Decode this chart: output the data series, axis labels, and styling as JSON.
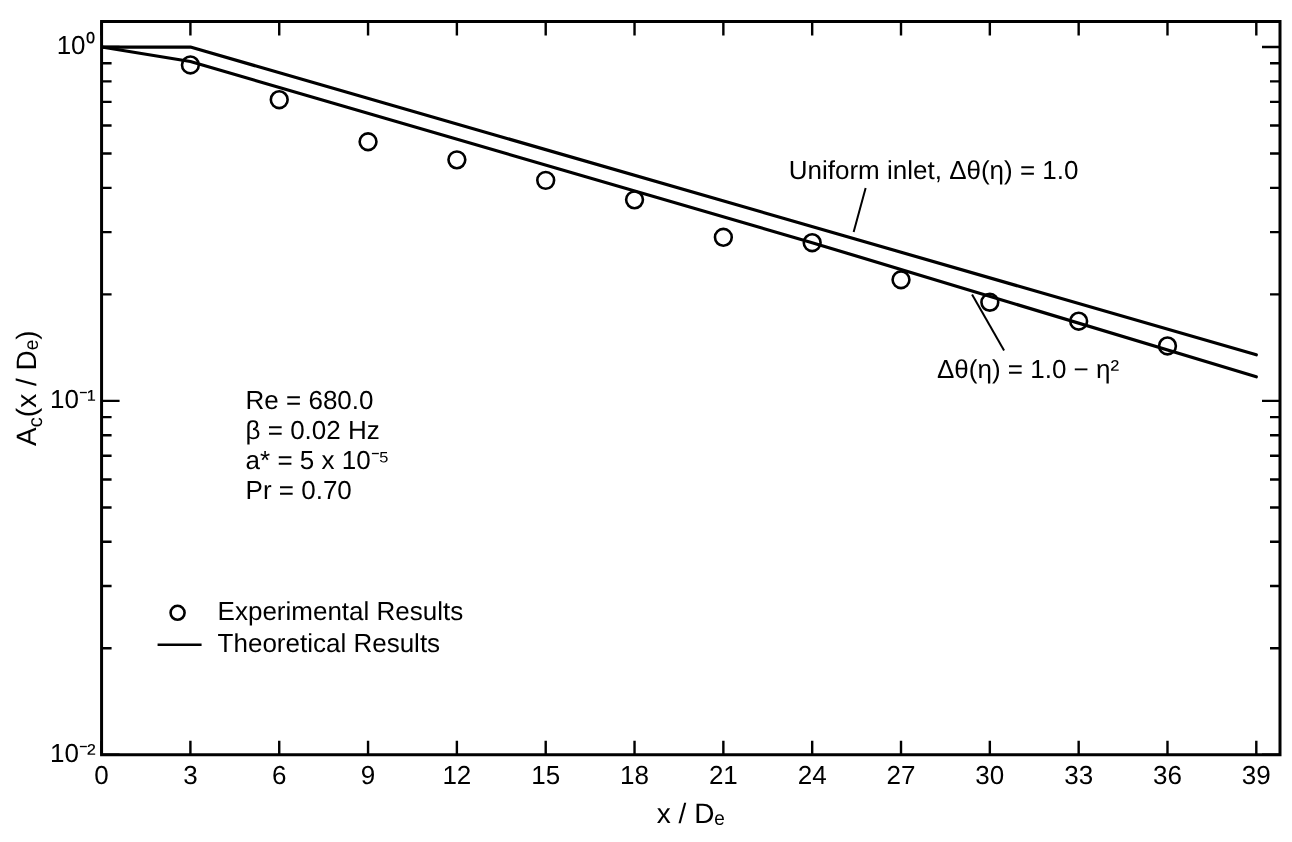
{
  "chart_data": {
    "type": "line",
    "xlabel": "x / Dₑ",
    "ylabel": "A$_{c}$(x / Dₑ)",
    "log": "y",
    "legend": "bottom left",
    "xlim": [
      0,
      39.8
    ],
    "ylim": [
      0.01,
      1.18
    ],
    "xticks": [
      0,
      3,
      6,
      9,
      12,
      15,
      18,
      21,
      24,
      27,
      30,
      33,
      36,
      39
    ],
    "yticks": [
      {
        "value": 0.01,
        "label": "10⁻²"
      },
      {
        "value": 0.02,
        "label": null
      },
      {
        "value": 0.03,
        "label": null
      },
      {
        "value": 0.04,
        "label": null
      },
      {
        "value": 0.05,
        "label": null
      },
      {
        "value": 0.06,
        "label": null
      },
      {
        "value": 0.07,
        "label": null
      },
      {
        "value": 0.08,
        "label": null
      },
      {
        "value": 0.09,
        "label": null
      },
      {
        "value": 0.1,
        "label": "10⁻¹"
      },
      {
        "value": 0.2,
        "label": null
      },
      {
        "value": 0.3,
        "label": null
      },
      {
        "value": 0.4,
        "label": null
      },
      {
        "value": 0.5,
        "label": null
      },
      {
        "value": 0.6,
        "label": null
      },
      {
        "value": 0.7,
        "label": null
      },
      {
        "value": 0.8,
        "label": null
      },
      {
        "value": 0.9,
        "label": null
      },
      {
        "value": 1,
        "label": "10⁰"
      }
    ],
    "series": [
      {
        "name": "Experimental Results",
        "type": "scatter",
        "marker": "circle",
        "color": "#000000",
        "x": [
          3,
          6,
          9,
          12,
          15,
          18,
          21,
          24,
          27,
          30,
          33,
          36
        ],
        "values": [
          0.89,
          0.71,
          0.54,
          0.48,
          0.42,
          0.37,
          0.29,
          0.28,
          0.22,
          0.19,
          0.168,
          0.143
        ]
      },
      {
        "name": "Theoretical Results",
        "marker": "none",
        "color": "#000000",
        "x": [
          0,
          3,
          24,
          39
        ],
        "values": [
          1.0,
          0.91,
          0.28,
          0.117
        ]
      },
      {
        "marker": "none",
        "color": "#000000",
        "x": [
          0,
          3,
          39
        ],
        "values": [
          1.0,
          1.0,
          0.135
        ]
      }
    ],
    "annotations": [
      "Re = 680.0",
      "β = 0.02 Hz",
      "a* = 5 x 10⁻⁵",
      "Pr = 0.70",
      {
        "text": "Uniform inlet, Δθ(η) = 1.0",
        "x": 25.4,
        "y": 0.3
      },
      {
        "text": "Δθ(η) = 1.0 − η²",
        "x": 29.4,
        "y": 0.2
      }
    ]
  }
}
